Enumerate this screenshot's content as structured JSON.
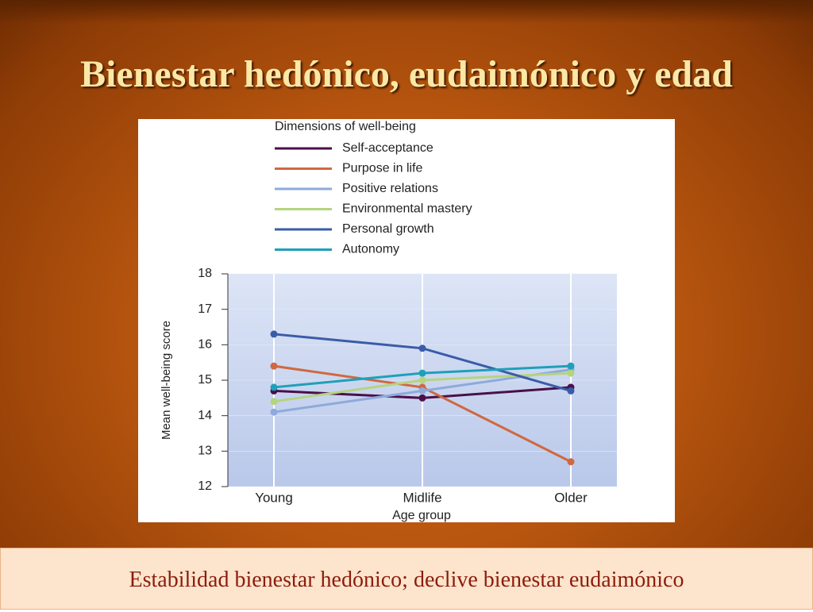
{
  "slide": {
    "title": "Bienestar hedónico, eudaimónico y edad",
    "footer": "Estabilidad bienestar hedónico; declive bienestar eudaimónico"
  },
  "chart_data": {
    "type": "line",
    "legend_title": "Dimensions of well-being",
    "xlabel": "Age group",
    "ylabel": "Mean well-being score",
    "categories": [
      "Young",
      "Midlife",
      "Older"
    ],
    "series": [
      {
        "name": "Self-acceptance",
        "color": "#4a0f4a",
        "values": [
          14.7,
          14.5,
          14.8
        ]
      },
      {
        "name": "Purpose in life",
        "color": "#d0683f",
        "values": [
          15.4,
          14.8,
          12.7
        ]
      },
      {
        "name": "Positive relations",
        "color": "#8eaadb",
        "values": [
          14.1,
          14.7,
          15.3
        ]
      },
      {
        "name": "Environmental mastery",
        "color": "#b5d47e",
        "values": [
          14.4,
          15.0,
          15.2
        ]
      },
      {
        "name": "Personal growth",
        "color": "#3a5ca8",
        "values": [
          16.3,
          15.9,
          14.7
        ]
      },
      {
        "name": "Autonomy",
        "color": "#1fa0b8",
        "values": [
          14.8,
          15.2,
          15.4
        ]
      }
    ],
    "ylim": [
      12,
      18
    ],
    "yticks": [
      12,
      13,
      14,
      15,
      16,
      17,
      18
    ],
    "grid": true
  }
}
